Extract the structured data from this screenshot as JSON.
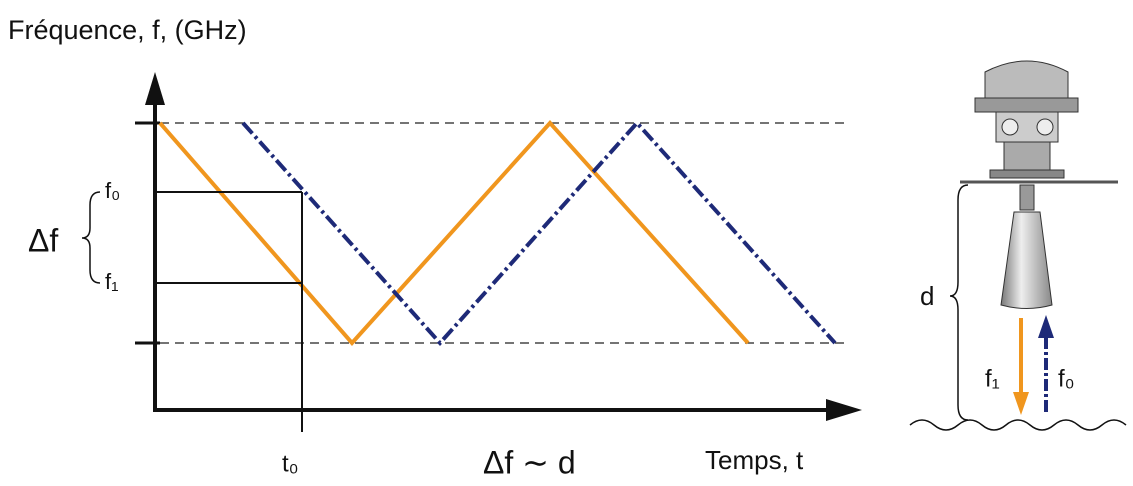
{
  "title": "Fréquence, f, (GHz)",
  "labels": {
    "f0": "f₀",
    "f1": "f₁",
    "delta_f": "Δf",
    "t0": "t₀",
    "relation": "Δf ∼ d",
    "x_axis": "Temps, t"
  },
  "device": {
    "distance": "d",
    "f1": "f₁",
    "f0": "f₀"
  }
}
